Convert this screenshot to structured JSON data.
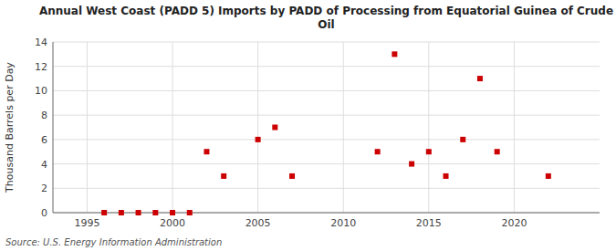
{
  "chart_data": {
    "type": "scatter",
    "title": "Annual West Coast (PADD 5) Imports by PADD of Processing from Equatorial Guinea of Crude\nOil",
    "ylabel": "Thousand Barrels per Day",
    "source": "Source: U.S. Energy Information Administration",
    "x": [
      1996,
      1997,
      1998,
      1999,
      2000,
      2001,
      2002,
      2003,
      2005,
      2006,
      2007,
      2012,
      2013,
      2014,
      2015,
      2016,
      2017,
      2018,
      2019,
      2022
    ],
    "values": [
      0,
      0,
      0,
      0,
      0,
      0,
      5,
      3,
      6,
      7,
      3,
      5,
      13,
      4,
      5,
      3,
      6,
      11,
      5,
      3
    ],
    "color": "#cc0000",
    "marker": "square",
    "xlim": [
      1993,
      2025
    ],
    "ylim": [
      0,
      14
    ],
    "xticks": [
      1995,
      2000,
      2005,
      2010,
      2015,
      2020
    ],
    "yticks": [
      0,
      2,
      4,
      6,
      8,
      10,
      12,
      14
    ],
    "grid": true
  }
}
